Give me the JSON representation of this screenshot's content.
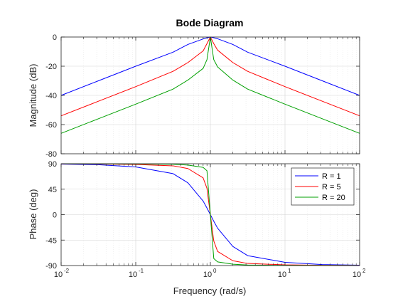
{
  "chart_data": [
    {
      "type": "line",
      "panel": "magnitude",
      "title": "Bode Diagram",
      "ylabel": "Magnitude (dB)",
      "xlabel": "",
      "xscale": "log",
      "xlim": [
        0.01,
        100
      ],
      "ylim": [
        -80,
        0
      ],
      "yticks": [
        0,
        -20,
        -40,
        -60,
        -80
      ],
      "grid": true,
      "x": [
        0.01,
        0.0316,
        0.1,
        0.316,
        0.5,
        0.8,
        0.9,
        1,
        1.11,
        1.25,
        2,
        3.16,
        10,
        31.6,
        100
      ],
      "series": [
        {
          "name": "R = 1",
          "color": "#0000ff",
          "values": [
            -40.0,
            -30.0,
            -20.0,
            -10.4,
            -5.1,
            -1.3,
            -0.5,
            0.0,
            -0.5,
            -1.2,
            -5.1,
            -10.4,
            -20.0,
            -30.0,
            -40.0
          ]
        },
        {
          "name": "R = 5",
          "color": "#ff0000",
          "values": [
            -54.0,
            -44.0,
            -34.0,
            -23.5,
            -17.5,
            -9.5,
            -4.5,
            0.0,
            -4.5,
            -9.0,
            -17.5,
            -23.5,
            -34.0,
            -44.0,
            -54.0
          ]
        },
        {
          "name": "R = 20",
          "color": "#00a000",
          "values": [
            -66.0,
            -56.0,
            -46.0,
            -35.7,
            -29.5,
            -21.5,
            -15.5,
            0.0,
            -15.5,
            -20.5,
            -29.5,
            -35.7,
            -46.0,
            -56.0,
            -66.0
          ]
        }
      ]
    },
    {
      "type": "line",
      "panel": "phase",
      "title": "",
      "ylabel": "Phase (deg)",
      "xlabel": "Frequency  (rad/s)",
      "xscale": "log",
      "xlim": [
        0.01,
        100
      ],
      "ylim": [
        -90,
        90
      ],
      "yticks": [
        90,
        45,
        0,
        -45,
        -90
      ],
      "xticks": [
        "10",
        "10",
        "10",
        "10",
        "10"
      ],
      "xtick_exponents": [
        "-2",
        "-1",
        "0",
        "1",
        "2"
      ],
      "grid": true,
      "legend_position": "top-right",
      "x": [
        0.01,
        0.0316,
        0.1,
        0.316,
        0.5,
        0.8,
        0.9,
        1,
        1.11,
        1.25,
        2,
        3.16,
        10,
        31.6,
        100
      ],
      "series": [
        {
          "name": "R = 1",
          "color": "#0000ff",
          "values": [
            89.4,
            88.2,
            84.3,
            72.5,
            56.3,
            24.0,
            11.6,
            0.0,
            -11.6,
            -24.0,
            -56.3,
            -72.5,
            -84.3,
            -88.2,
            -89.4
          ]
        },
        {
          "name": "R = 5",
          "color": "#ff0000",
          "values": [
            89.9,
            89.6,
            88.8,
            86.3,
            81.5,
            65.0,
            46.5,
            0.0,
            -46.5,
            -65.0,
            -81.5,
            -86.3,
            -88.8,
            -89.6,
            -89.9
          ]
        },
        {
          "name": "R = 20",
          "color": "#00a000",
          "values": [
            90.0,
            89.9,
            89.7,
            89.1,
            87.7,
            83.5,
            77.5,
            0.0,
            -77.5,
            -83.5,
            -87.7,
            -89.1,
            -89.7,
            -89.9,
            -90.0
          ]
        }
      ]
    }
  ]
}
